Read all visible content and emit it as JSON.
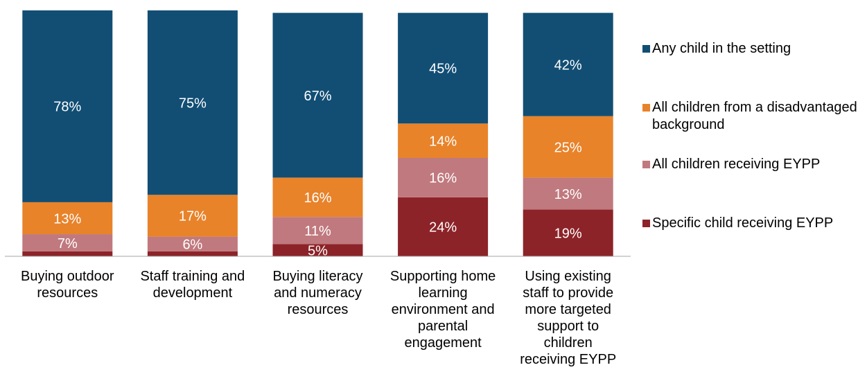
{
  "chart_data": {
    "type": "stacked_bar",
    "categories": [
      "Buying outdoor resources",
      "Staff training and development",
      "Buying literacy and numeracy resources",
      "Supporting home learning environment and parental engagement",
      "Using existing staff to provide more targeted support to children receiving EYPP"
    ],
    "series": [
      {
        "name": "Any child in the setting",
        "color": "#124e74",
        "values": [
          78,
          75,
          67,
          45,
          42
        ],
        "value_labels": [
          "78%",
          "75%",
          "67%",
          "45%",
          "42%"
        ]
      },
      {
        "name": "All children from a disadvantaged background",
        "color": "#e8832a",
        "values": [
          13,
          17,
          16,
          14,
          25
        ],
        "value_labels": [
          "13%",
          "17%",
          "16%",
          "14%",
          "25%"
        ]
      },
      {
        "name": "All children receiving EYPP",
        "color": "#c0797e",
        "values": [
          7,
          6,
          11,
          16,
          13
        ],
        "value_labels": [
          "7%",
          "6%",
          "11%",
          "16%",
          "13%"
        ]
      },
      {
        "name": "Specific child receiving EYPP",
        "color": "#8c2328",
        "values": [
          2,
          2,
          5,
          24,
          19
        ],
        "value_labels": [
          null,
          null,
          "5%",
          "24%",
          "19%"
        ]
      }
    ],
    "ylim": [
      0,
      100
    ],
    "legend": "right"
  }
}
